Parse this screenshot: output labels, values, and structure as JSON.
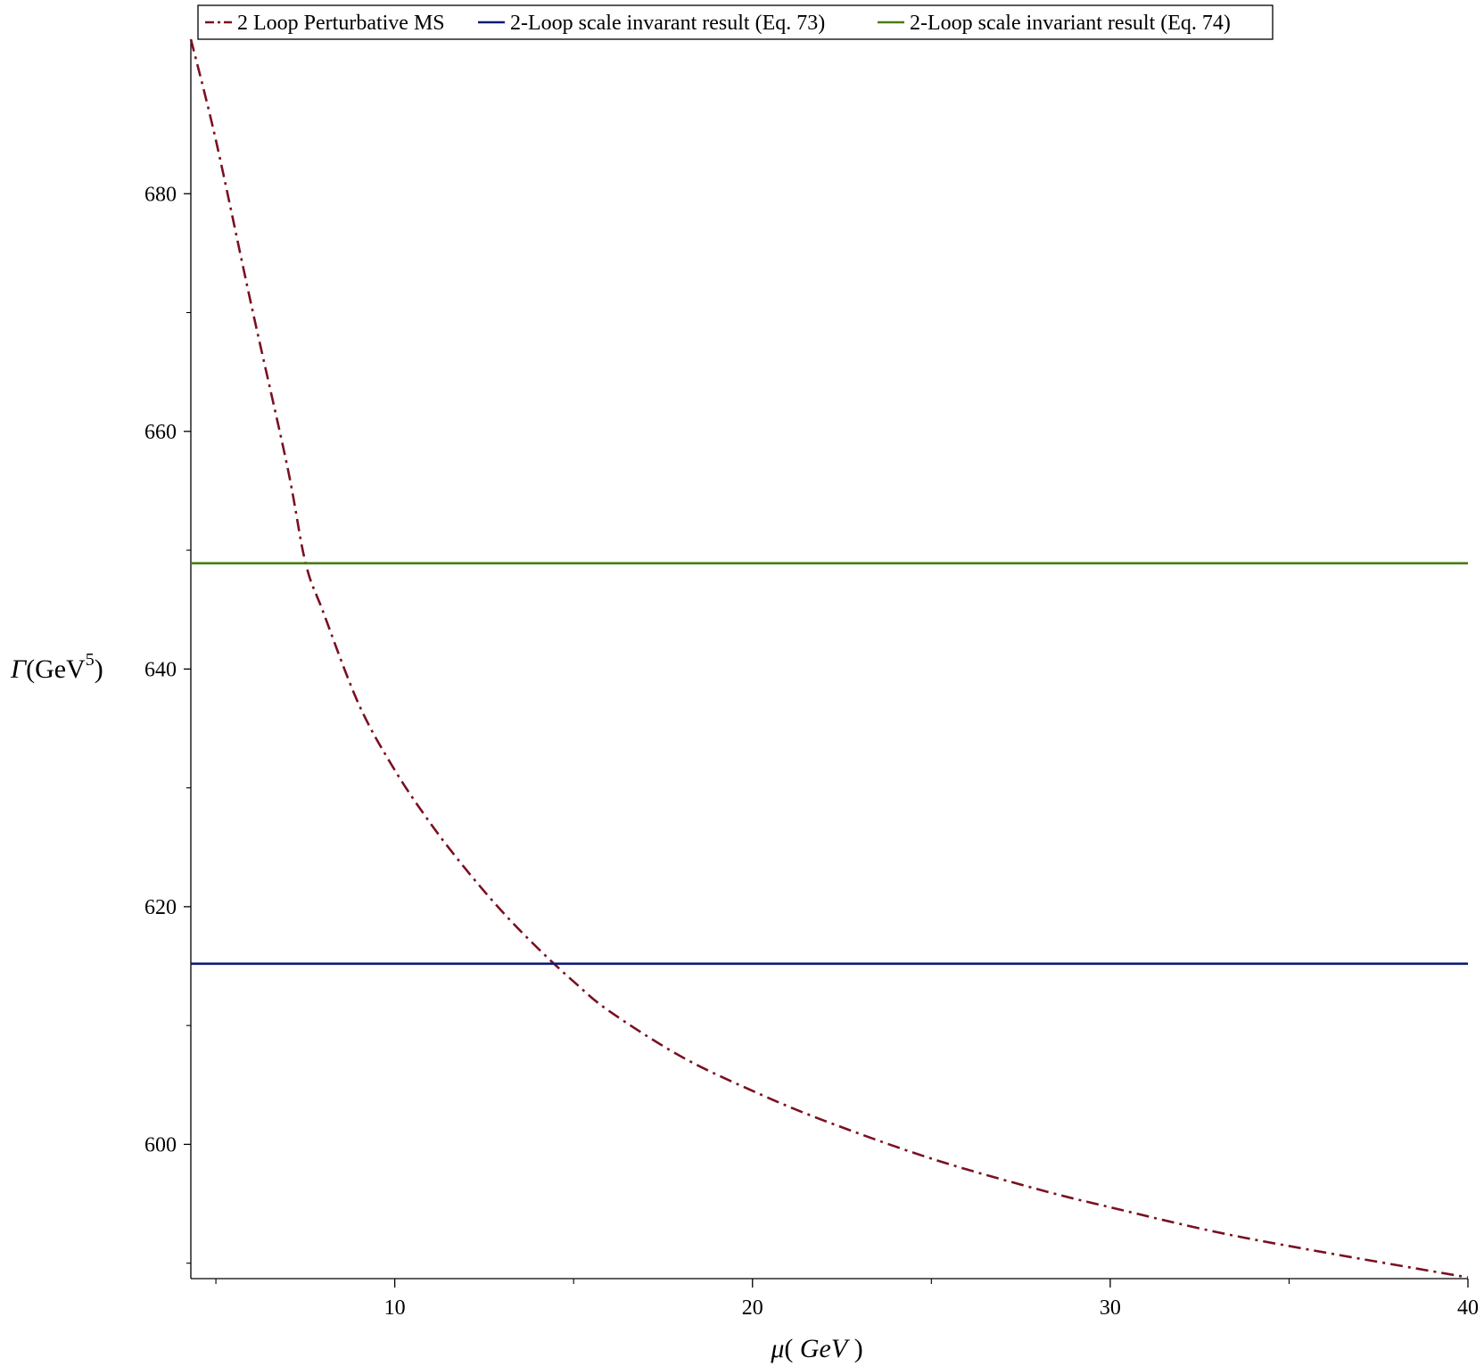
{
  "chart_data": {
    "type": "line",
    "title": "",
    "xlabel": "μ( GeV )",
    "xlabel_mu": "μ",
    "xlabel_unit": "GeV",
    "ylabel_symbol": "Γ",
    "ylabel_base": "(GeV",
    "ylabel_exp": "5",
    "ylabel_close": ")",
    "xlim": [
      4.3,
      40
    ],
    "ylim": [
      588.7,
      693
    ],
    "x_ticks": [
      10,
      20,
      30,
      40
    ],
    "x_minor_ticks": [
      5,
      15,
      25,
      35
    ],
    "y_ticks": [
      600,
      620,
      640,
      660,
      680
    ],
    "y_minor_ticks": [
      590,
      610,
      630,
      650,
      670
    ],
    "grid": false,
    "legend_position": "top",
    "series": [
      {
        "name": "2 Loop Perturbative MS",
        "color": "#7a1020",
        "dash": "dash-dot",
        "x": [
          4.3,
          5,
          6,
          7,
          7.5,
          8,
          9,
          10,
          11,
          12,
          13,
          14,
          15,
          16,
          18,
          20,
          22,
          25,
          28,
          30,
          33,
          36,
          40
        ],
        "y": [
          693,
          684.5,
          670.5,
          657,
          649,
          644.8,
          637,
          631.5,
          627,
          623.1,
          619.6,
          616.5,
          613.7,
          611.2,
          607.4,
          604.5,
          602,
          598.8,
          596.2,
          594.7,
          592.6,
          590.9,
          588.8
        ]
      },
      {
        "name": "2-Loop scale invarant result (Eq. 73)",
        "color": "#0a1a78",
        "dash": "solid",
        "x": [
          4.3,
          40
        ],
        "y": [
          615.2,
          615.2
        ]
      },
      {
        "name": "2-Loop scale invariant result (Eq. 74)",
        "color": "#4a7d12",
        "dash": "solid",
        "x": [
          4.3,
          40
        ],
        "y": [
          648.9,
          648.9
        ]
      }
    ]
  }
}
